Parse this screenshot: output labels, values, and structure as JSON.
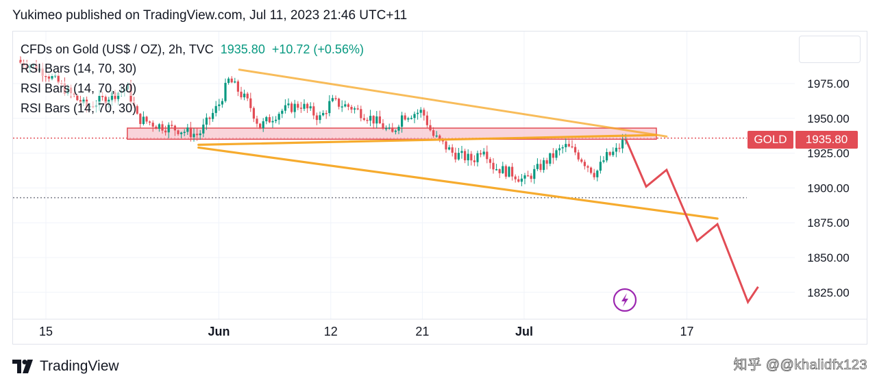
{
  "header": {
    "caption": "Yukimeo published on TradingView.com, Jul 11, 2023 21:46 UTC+11"
  },
  "legend": {
    "symbol": "CFDs on Gold (US$ / OZ), 2h, TVC",
    "price": "1935.80",
    "change": "+10.72 (+0.56%)",
    "indicators": [
      "RSI Bars (14, 70, 30)",
      "RSI Bars (14, 70, 30)",
      "RSI Bars (14, 70, 30)"
    ]
  },
  "price_tag": {
    "symbol": "GOLD",
    "value": "1935.80",
    "color": "#e24c55"
  },
  "footer": {
    "brand": "TradingView",
    "watermark": "知乎 @@khalidfx123"
  },
  "colors": {
    "up": "#089981",
    "down": "#e24c55",
    "trendline": "#f5a623",
    "zone_fill": "#f7c6ce",
    "zone_border": "#e24c55",
    "projection": "#e24c55",
    "flash_icon": "#9c27b0"
  },
  "chart_data": {
    "type": "candlestick",
    "timeframe": "2h",
    "x_ticks": [
      {
        "label": "15",
        "date": "2023-05-15"
      },
      {
        "label": "Jun",
        "date": "2023-06-01"
      },
      {
        "label": "12",
        "date": "2023-06-12"
      },
      {
        "label": "21",
        "date": "2023-06-21"
      },
      {
        "label": "Jul",
        "date": "2023-07-01"
      },
      {
        "label": "17",
        "date": "2023-07-17"
      }
    ],
    "y_ticks": [
      1825,
      1850,
      1875,
      1900,
      1925,
      1950,
      1975
    ],
    "ylim": [
      1805,
      2000
    ],
    "grid": true,
    "path": [
      [
        "2023-05-13",
        1990
      ],
      [
        "2023-05-15",
        1983
      ],
      [
        "2023-05-17",
        1970
      ],
      [
        "2023-05-19",
        1958
      ],
      [
        "2023-05-21",
        1965
      ],
      [
        "2023-05-23",
        1972
      ],
      [
        "2023-05-24",
        1950
      ],
      [
        "2023-05-26",
        1945
      ],
      [
        "2023-05-28",
        1942
      ],
      [
        "2023-05-30",
        1938
      ],
      [
        "2023-06-01",
        1960
      ],
      [
        "2023-06-02",
        1978
      ],
      [
        "2023-06-04",
        1960
      ],
      [
        "2023-06-05",
        1944
      ],
      [
        "2023-06-07",
        1955
      ],
      [
        "2023-06-09",
        1960
      ],
      [
        "2023-06-11",
        1950
      ],
      [
        "2023-06-12",
        1962
      ],
      [
        "2023-06-14",
        1958
      ],
      [
        "2023-06-16",
        1950
      ],
      [
        "2023-06-17",
        1945
      ],
      [
        "2023-06-18",
        1938
      ],
      [
        "2023-06-19",
        1952
      ],
      [
        "2023-06-21",
        1955
      ],
      [
        "2023-06-22",
        1938
      ],
      [
        "2023-06-24",
        1925
      ],
      [
        "2023-06-26",
        1920
      ],
      [
        "2023-06-27",
        1930
      ],
      [
        "2023-06-28",
        1915
      ],
      [
        "2023-06-30",
        1910
      ],
      [
        "2023-07-01",
        1905
      ],
      [
        "2023-07-03",
        1918
      ],
      [
        "2023-07-05",
        1930
      ],
      [
        "2023-07-06",
        1926
      ],
      [
        "2023-07-08",
        1910
      ],
      [
        "2023-07-09",
        1922
      ],
      [
        "2023-07-10",
        1926
      ],
      [
        "2023-07-11",
        1935.8
      ]
    ],
    "horizontal_levels": [
      1935.8,
      1893
    ],
    "resistance_zone": {
      "from": "2023-05-23",
      "to": "2023-07-14",
      "low": 1935,
      "high": 1943
    },
    "trendlines": [
      {
        "from": [
          "2023-06-03",
          1985
        ],
        "to": [
          "2023-07-15",
          1937
        ]
      },
      {
        "from": [
          "2023-05-30",
          1931
        ],
        "to": [
          "2023-07-14",
          1938
        ]
      },
      {
        "from": [
          "2023-05-30",
          1929
        ],
        "to": [
          "2023-07-20",
          1878
        ]
      }
    ],
    "projection": [
      [
        "2023-07-11",
        1935
      ],
      [
        "2023-07-13",
        1901
      ],
      [
        "2023-07-15",
        1913
      ],
      [
        "2023-07-18",
        1862
      ],
      [
        "2023-07-20",
        1874
      ],
      [
        "2023-07-23",
        1818
      ],
      [
        "2023-07-24",
        1829
      ]
    ]
  }
}
